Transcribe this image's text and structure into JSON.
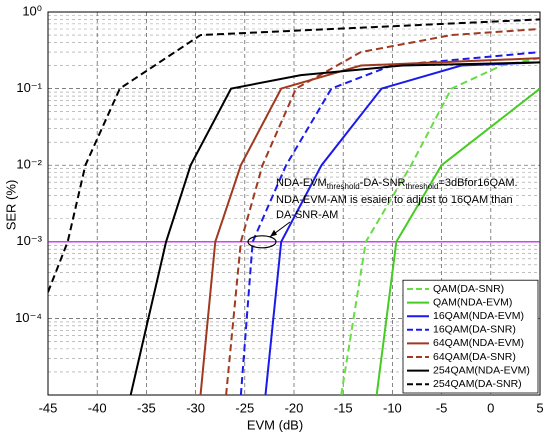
{
  "chart_data": {
    "type": "line",
    "x_label": "EVM (dB)",
    "y_label": "SER (%)",
    "xlim": [
      -45,
      5
    ],
    "xticks": [
      -45,
      -40,
      -35,
      -30,
      -25,
      -20,
      -15,
      -10,
      -5,
      0,
      5
    ],
    "ylim": [
      1e-05,
      1
    ],
    "log_y": true,
    "grid": true,
    "legend": "lower right",
    "yticks": [
      {
        "value": 0.0001,
        "label": "10⁻⁴"
      },
      {
        "value": 0.001,
        "label": "10⁻³"
      },
      {
        "value": 0.01,
        "label": "10⁻²"
      },
      {
        "value": 0.1,
        "label": "10⁻¹"
      },
      {
        "value": 1,
        "label": "10⁰"
      }
    ],
    "hline": {
      "value": 0.001,
      "color": "#c000ff"
    },
    "annotation": {
      "line1": [
        "NDA-EVM",
        "threshold",
        "-DA-SNR",
        "threshold",
        "=3dBfor16QAM."
      ],
      "line2": "NDA-EVM-AM is esaier to adjust to 16QAM than",
      "line3": "DA-SNR-AM"
    },
    "series": [
      {
        "name": "QAM(DA-SNR)",
        "color": "#66dd44",
        "dashed": true,
        "x": [
          -15.2,
          -12.7,
          -8.1,
          -4,
          1.1,
          5
        ],
        "values": [
          1e-05,
          0.001,
          0.01,
          0.1,
          0.2,
          0.25
        ]
      },
      {
        "name": "QAM(NDA-EVM)",
        "color": "#44cc22",
        "dashed": false,
        "x": [
          -11.6,
          -9.6,
          -5,
          5
        ],
        "values": [
          1e-05,
          0.001,
          0.01,
          0.1
        ]
      },
      {
        "name": "16QAM(NDA-EVM)",
        "color": "#1a1aee",
        "dashed": false,
        "x": [
          -22.9,
          -21.3,
          -17.2,
          -11.1,
          -3,
          5
        ],
        "values": [
          1e-05,
          0.001,
          0.01,
          0.1,
          0.2,
          0.22
        ]
      },
      {
        "name": "16QAM(DA-SNR)",
        "color": "#1a1aee",
        "dashed": true,
        "x": [
          -25.4,
          -24.2,
          -20.8,
          -16.2,
          -10.1,
          5
        ],
        "values": [
          1e-05,
          0.001,
          0.01,
          0.1,
          0.2,
          0.3
        ]
      },
      {
        "name": "64QAM(NDA-EVM)",
        "color": "#a0391f",
        "dashed": false,
        "x": [
          -29.5,
          -28,
          -25.4,
          -21.3,
          -13.2,
          5
        ],
        "values": [
          1e-05,
          0.001,
          0.01,
          0.1,
          0.2,
          0.25
        ]
      },
      {
        "name": "64QAM(DA-SNR)",
        "color": "#a0391f",
        "dashed": true,
        "x": [
          -26.9,
          -25.4,
          -23.2,
          -19.8,
          -13.2,
          -4,
          5
        ],
        "values": [
          1e-05,
          0.001,
          0.01,
          0.1,
          0.3,
          0.5,
          0.6
        ]
      },
      {
        "name": "254QAM(NDA-EVM)",
        "color": "#000000",
        "dashed": false,
        "x": [
          -36.6,
          -33,
          -30.5,
          -26.4,
          -19.3,
          -9,
          5
        ],
        "values": [
          1e-05,
          0.001,
          0.01,
          0.1,
          0.15,
          0.2,
          0.22
        ]
      },
      {
        "name": "254QAM(DA-SNR)",
        "color": "#000000",
        "dashed": true,
        "x": [
          -45,
          -43,
          -41.2,
          -37.7,
          -29.5,
          5
        ],
        "values": [
          0.00022,
          0.001,
          0.01,
          0.1,
          0.5,
          0.8
        ]
      }
    ]
  }
}
